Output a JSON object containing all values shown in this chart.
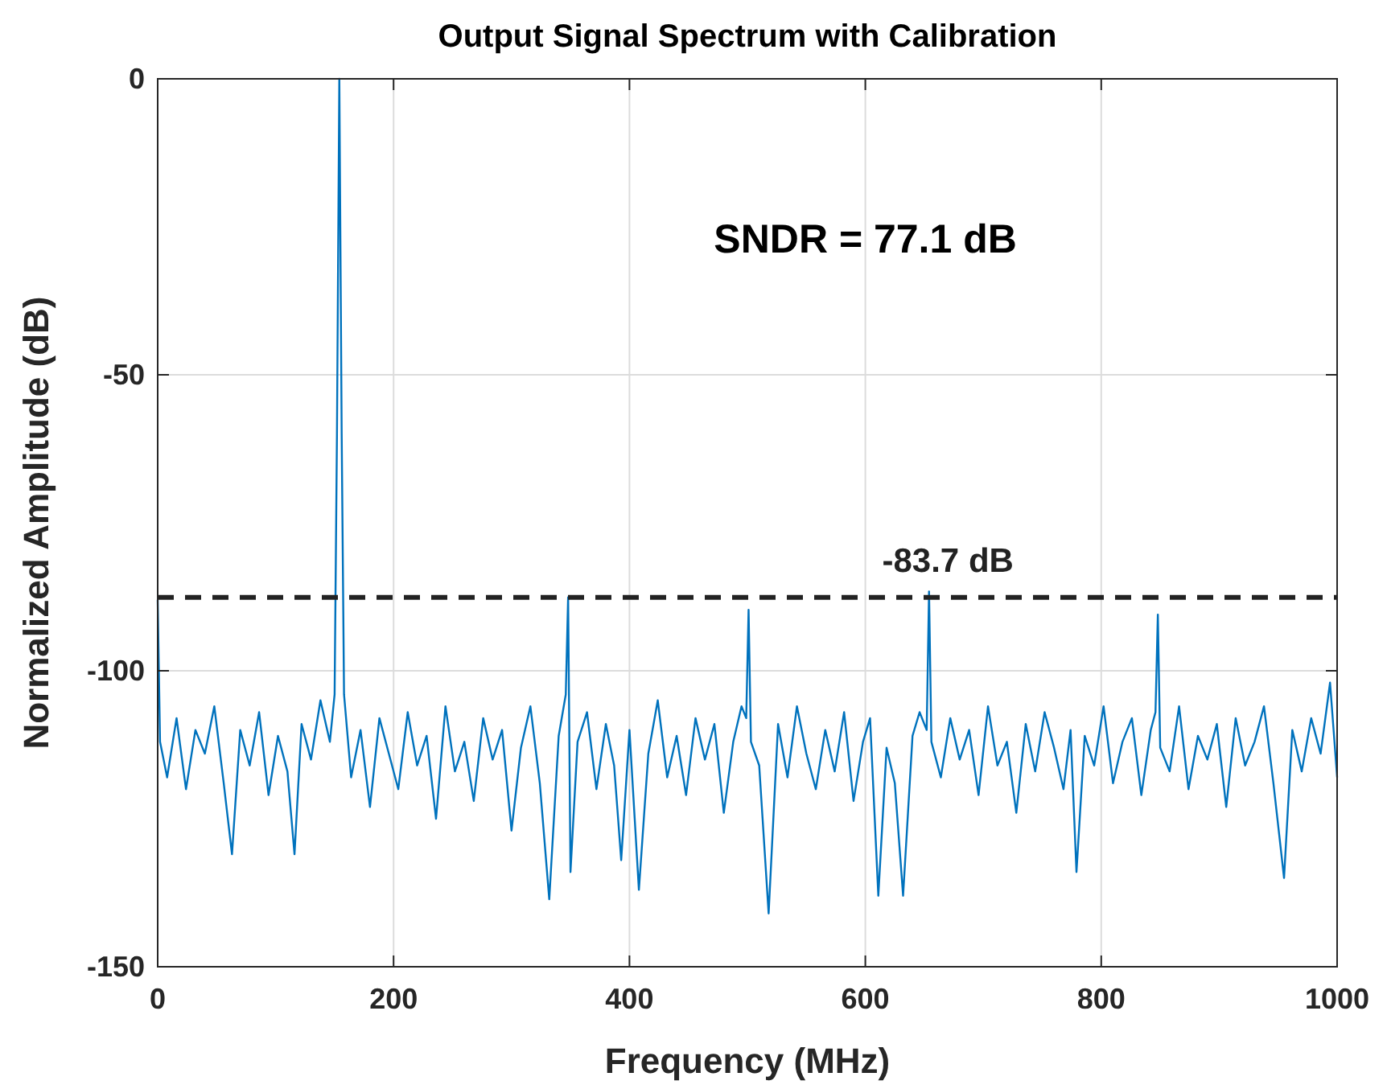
{
  "chart_data": {
    "type": "line",
    "title": "Output Signal Spectrum with Calibration",
    "xlabel": "Frequency (MHz)",
    "ylabel": "Normalized Amplitude (dB)",
    "annotations": [
      "SNDR = 77.1 dB"
    ],
    "x": [
      0,
      2,
      8,
      16,
      24,
      32,
      40,
      48,
      56,
      63,
      70,
      78,
      86,
      94,
      102,
      110,
      116,
      122,
      130,
      138,
      146,
      150,
      152,
      154,
      156,
      158,
      164,
      172,
      180,
      188,
      196,
      204,
      212,
      220,
      228,
      236,
      244,
      252,
      260,
      268,
      276,
      284,
      292,
      300,
      308,
      316,
      324,
      332,
      340,
      346,
      348,
      350,
      356,
      364,
      372,
      380,
      387,
      393,
      400,
      408,
      416,
      424,
      432,
      440,
      448,
      456,
      464,
      472,
      480,
      488,
      495,
      499,
      501,
      503,
      510,
      518,
      526,
      534,
      542,
      550,
      558,
      566,
      574,
      582,
      590,
      598,
      604,
      611,
      618,
      625,
      632,
      640,
      646,
      652,
      654,
      656,
      664,
      672,
      680,
      688,
      696,
      704,
      712,
      720,
      728,
      736,
      744,
      752,
      760,
      768,
      774,
      779,
      786,
      794,
      802,
      810,
      818,
      826,
      834,
      842,
      846,
      848,
      850,
      858,
      866,
      874,
      882,
      890,
      898,
      906,
      914,
      922,
      930,
      938,
      946,
      955,
      962,
      970,
      978,
      986,
      994,
      1000
    ],
    "series": [
      {
        "color": "#0072bd",
        "values": [
          -88,
          -112,
          -118,
          -108,
          -120,
          -110,
          -114,
          -106,
          -119,
          -131,
          -110,
          -116,
          -107,
          -121,
          -111,
          -117,
          -131,
          -109,
          -115,
          -105,
          -112,
          -104,
          -60,
          0,
          -60,
          -104,
          -118,
          -110,
          -123,
          -108,
          -114,
          -120,
          -107,
          -116,
          -111,
          -125,
          -106,
          -117,
          -112,
          -122,
          -108,
          -115,
          -110,
          -127,
          -113,
          -106,
          -119,
          -138.6,
          -111,
          -104,
          -87.6,
          -134,
          -112,
          -107,
          -120,
          -109,
          -116,
          -132,
          -110,
          -137,
          -114,
          -105,
          -118,
          -111,
          -121,
          -108,
          -115,
          -109,
          -124,
          -112,
          -106,
          -108,
          -89.7,
          -112,
          -116,
          -141,
          -109,
          -118,
          -106,
          -114,
          -120,
          -110,
          -117,
          -107,
          -122,
          -112,
          -108,
          -138,
          -113,
          -119,
          -138,
          -111,
          -107,
          -110,
          -86.6,
          -112,
          -118,
          -108,
          -115,
          -110,
          -121,
          -106,
          -116,
          -112,
          -124,
          -109,
          -117,
          -107,
          -113,
          -120,
          -110,
          -134,
          -111,
          -116,
          -106,
          -119,
          -112,
          -108,
          -121,
          -110,
          -107,
          -90.5,
          -113,
          -117,
          -106,
          -120,
          -111,
          -115,
          -109,
          -123,
          -108,
          -116,
          -112,
          -106,
          -119,
          -135,
          -110,
          -117,
          -108,
          -114,
          -102,
          -118
        ]
      }
    ],
    "xlim": [
      0,
      1000
    ],
    "xticks": [
      0,
      200,
      400,
      600,
      800,
      1000
    ],
    "ylim": [
      -150,
      0
    ],
    "yticks": [
      -150,
      -100,
      -50,
      0
    ],
    "grid": true,
    "line_style": "solid",
    "marker": "none",
    "ref_lines": [
      {
        "axis": "y",
        "value": -87.6,
        "label": "-83.7 dB",
        "color": "#222222",
        "line_style": "dashed"
      }
    ]
  }
}
